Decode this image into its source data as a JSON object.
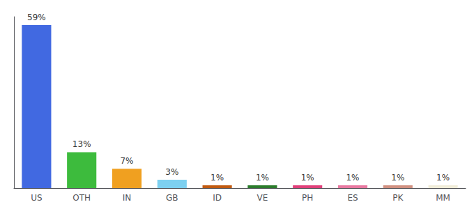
{
  "chart_data": {
    "type": "bar",
    "categories": [
      "US",
      "OTH",
      "IN",
      "GB",
      "ID",
      "VE",
      "PH",
      "ES",
      "PK",
      "MM"
    ],
    "values": [
      59,
      13,
      7,
      3,
      1,
      1,
      1,
      1,
      1,
      1
    ],
    "value_labels": [
      "59%",
      "13%",
      "7%",
      "3%",
      "1%",
      "1%",
      "1%",
      "1%",
      "1%",
      "1%"
    ],
    "colors": [
      "#4169e1",
      "#3dbb3d",
      "#f0a020",
      "#7dd0f0",
      "#c05a10",
      "#2b7b2b",
      "#e0407a",
      "#e878a0",
      "#d09080",
      "#f0ecd8"
    ],
    "ylim": [
      0,
      62
    ],
    "data_labels": true,
    "tick_labels": "x",
    "grid": false
  }
}
